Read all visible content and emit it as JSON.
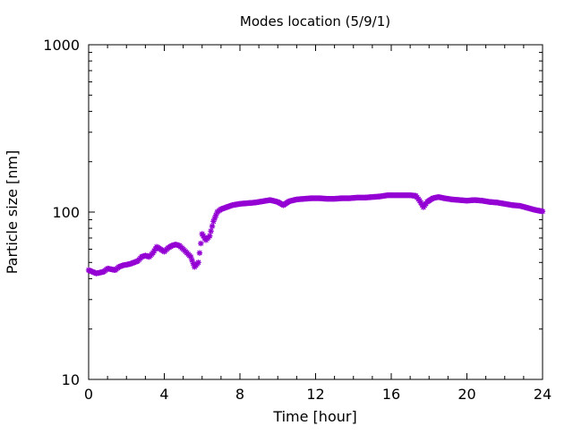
{
  "chart_data": {
    "type": "scatter",
    "title": "Modes location (5/9/1)",
    "xlabel": "Time [hour]",
    "ylabel": "Particle size [nm]",
    "xlim": [
      0,
      24
    ],
    "ylim": [
      10,
      1000
    ],
    "yscale": "log",
    "grid": false,
    "x_ticks": [
      0,
      4,
      8,
      12,
      16,
      20,
      24
    ],
    "x_tick_labels": [
      "0",
      "4",
      "8",
      "12",
      "16",
      "20",
      "24"
    ],
    "y_ticks": [
      10,
      100,
      1000
    ],
    "y_tick_labels": [
      "10",
      "100",
      "1000"
    ],
    "marker_color": "#9400d3",
    "series": [
      {
        "marker": "star",
        "points": [
          [
            0.0,
            45
          ],
          [
            0.2,
            44
          ],
          [
            0.4,
            43
          ],
          [
            0.6,
            43.5
          ],
          [
            0.8,
            44
          ],
          [
            1.0,
            46
          ],
          [
            1.2,
            45.5
          ],
          [
            1.4,
            45
          ],
          [
            1.6,
            47
          ],
          [
            1.8,
            48
          ],
          [
            2.0,
            48.5
          ],
          [
            2.2,
            49
          ],
          [
            2.4,
            50
          ],
          [
            2.6,
            51
          ],
          [
            2.8,
            54
          ],
          [
            3.0,
            55
          ],
          [
            3.2,
            54
          ],
          [
            3.4,
            57
          ],
          [
            3.6,
            62
          ],
          [
            3.8,
            60
          ],
          [
            4.0,
            58
          ],
          [
            4.2,
            61
          ],
          [
            4.4,
            63
          ],
          [
            4.6,
            64
          ],
          [
            4.8,
            63
          ],
          [
            5.0,
            60
          ],
          [
            5.2,
            57
          ],
          [
            5.4,
            54
          ],
          [
            5.6,
            47
          ],
          [
            5.8,
            50
          ],
          [
            6.0,
            74
          ],
          [
            6.2,
            68
          ],
          [
            6.4,
            72
          ],
          [
            6.6,
            88
          ],
          [
            6.8,
            100
          ],
          [
            7.0,
            104
          ],
          [
            7.3,
            107
          ],
          [
            7.6,
            110
          ],
          [
            8.0,
            112
          ],
          [
            8.4,
            113
          ],
          [
            8.8,
            114
          ],
          [
            9.2,
            116
          ],
          [
            9.6,
            118
          ],
          [
            10.0,
            115
          ],
          [
            10.3,
            110
          ],
          [
            10.6,
            116
          ],
          [
            11.0,
            119
          ],
          [
            11.4,
            120
          ],
          [
            11.8,
            121
          ],
          [
            12.2,
            121
          ],
          [
            12.6,
            120
          ],
          [
            13.0,
            120
          ],
          [
            13.4,
            121
          ],
          [
            13.8,
            121
          ],
          [
            14.2,
            122
          ],
          [
            14.6,
            122
          ],
          [
            15.0,
            123
          ],
          [
            15.4,
            124
          ],
          [
            15.8,
            126
          ],
          [
            16.2,
            126
          ],
          [
            16.6,
            126
          ],
          [
            17.0,
            126
          ],
          [
            17.3,
            125
          ],
          [
            17.5,
            117
          ],
          [
            17.7,
            107
          ],
          [
            17.9,
            115
          ],
          [
            18.2,
            121
          ],
          [
            18.5,
            123
          ],
          [
            18.8,
            121
          ],
          [
            19.2,
            119
          ],
          [
            19.6,
            118
          ],
          [
            20.0,
            117
          ],
          [
            20.4,
            118
          ],
          [
            20.8,
            117
          ],
          [
            21.2,
            115
          ],
          [
            21.6,
            114
          ],
          [
            22.0,
            112
          ],
          [
            22.4,
            110
          ],
          [
            22.8,
            109
          ],
          [
            23.2,
            106
          ],
          [
            23.6,
            103
          ],
          [
            24.0,
            101
          ]
        ]
      }
    ]
  }
}
